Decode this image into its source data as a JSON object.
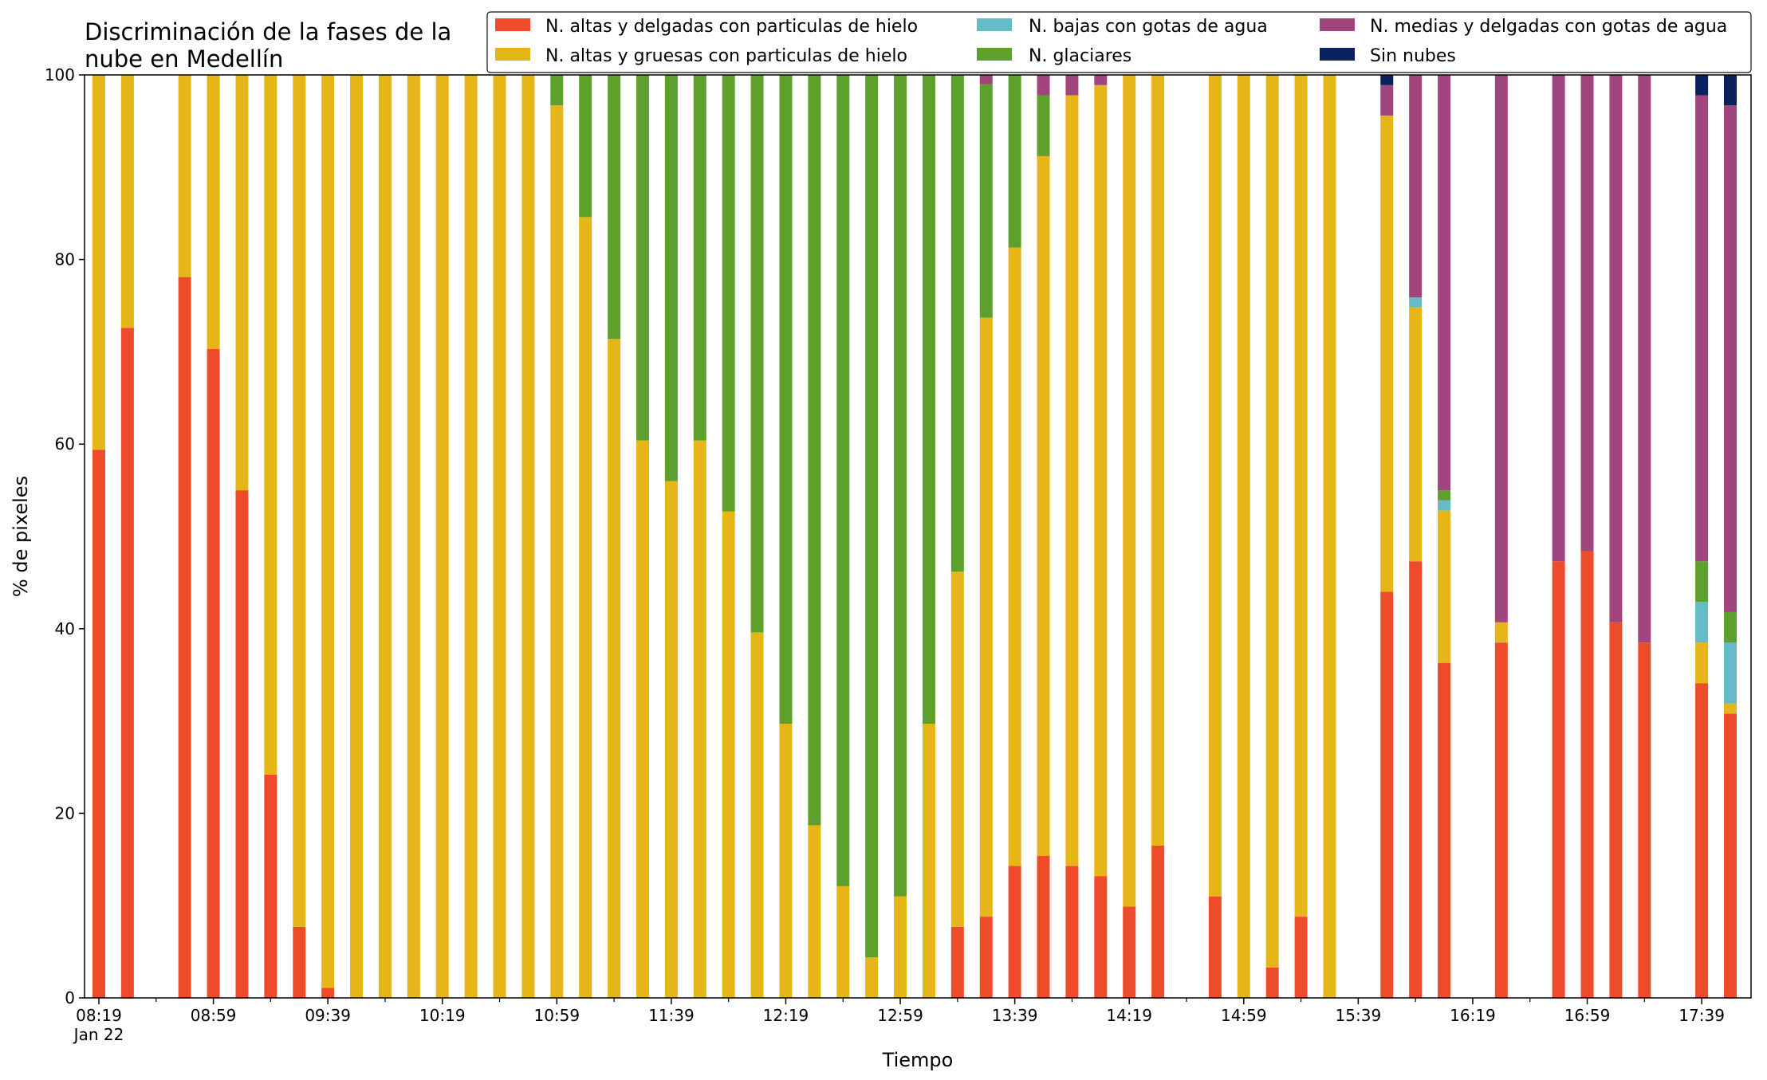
{
  "chart_data": {
    "type": "bar",
    "stacked": true,
    "title_lines": [
      "Discriminación de la fases de la",
      "nube en Medellín"
    ],
    "xlabel": "Tiempo",
    "ylabel": "% de pixeles",
    "ylim": [
      0,
      100
    ],
    "yticks": [
      0,
      20,
      40,
      60,
      80,
      100
    ],
    "x_start": "2022-01-22 08:19",
    "x_end": "2022-01-22 17:49",
    "x_ticks": [
      {
        "time": "08:19",
        "label": "08:19",
        "sublabel": "Jan 22"
      },
      {
        "time": "08:59",
        "label": "08:59"
      },
      {
        "time": "09:39",
        "label": "09:39"
      },
      {
        "time": "10:19",
        "label": "10:19"
      },
      {
        "time": "10:59",
        "label": "10:59"
      },
      {
        "time": "11:39",
        "label": "11:39"
      },
      {
        "time": "12:19",
        "label": "12:19"
      },
      {
        "time": "12:59",
        "label": "12:59"
      },
      {
        "time": "13:39",
        "label": "13:39"
      },
      {
        "time": "14:19",
        "label": "14:19"
      },
      {
        "time": "14:59",
        "label": "14:59"
      },
      {
        "time": "15:39",
        "label": "15:39"
      },
      {
        "time": "16:19",
        "label": "16:19"
      },
      {
        "time": "16:59",
        "label": "16:59"
      },
      {
        "time": "17:39",
        "label": "17:39"
      }
    ],
    "grid": false,
    "legend_position": "top-right",
    "series": [
      {
        "name": "N. altas y delgadas con particulas de hielo",
        "color": "#EE4B2B"
      },
      {
        "name": "N. altas y gruesas con particulas de hielo",
        "color": "#E6B618"
      },
      {
        "name": "N. bajas con gotas de agua",
        "color": "#63BCC8"
      },
      {
        "name": "N. glaciares",
        "color": "#5DA02C"
      },
      {
        "name": "N. medias y delgadas con gotas de agua",
        "color": "#A0457D"
      },
      {
        "name": "Sin nubes",
        "color": "#0A2260"
      }
    ],
    "bars": [
      {
        "time": "08:19",
        "values": [
          59.4,
          40.6,
          0,
          0,
          0,
          0
        ]
      },
      {
        "time": "08:29",
        "values": [
          72.6,
          27.4,
          0,
          0,
          0,
          0
        ]
      },
      {
        "time": "08:49",
        "values": [
          78.1,
          21.9,
          0,
          0,
          0,
          0
        ]
      },
      {
        "time": "08:59",
        "values": [
          70.3,
          29.7,
          0,
          0,
          0,
          0
        ]
      },
      {
        "time": "09:09",
        "values": [
          55.0,
          45.0,
          0,
          0,
          0,
          0
        ]
      },
      {
        "time": "09:19",
        "values": [
          24.2,
          75.8,
          0,
          0,
          0,
          0
        ]
      },
      {
        "time": "09:29",
        "values": [
          7.7,
          92.3,
          0,
          0,
          0,
          0
        ]
      },
      {
        "time": "09:39",
        "values": [
          1.1,
          98.9,
          0,
          0,
          0,
          0
        ]
      },
      {
        "time": "09:49",
        "values": [
          0,
          100,
          0,
          0,
          0,
          0
        ]
      },
      {
        "time": "09:59",
        "values": [
          0,
          100,
          0,
          0,
          0,
          0
        ]
      },
      {
        "time": "10:09",
        "values": [
          0,
          100,
          0,
          0,
          0,
          0
        ]
      },
      {
        "time": "10:19",
        "values": [
          0,
          100,
          0,
          0,
          0,
          0
        ]
      },
      {
        "time": "10:29",
        "values": [
          0,
          100,
          0,
          0,
          0,
          0
        ]
      },
      {
        "time": "10:39",
        "values": [
          0,
          100,
          0,
          0,
          0,
          0
        ]
      },
      {
        "time": "10:49",
        "values": [
          0,
          100,
          0,
          0,
          0,
          0
        ]
      },
      {
        "time": "10:59",
        "values": [
          0,
          96.7,
          0,
          3.3,
          0,
          0
        ]
      },
      {
        "time": "11:09",
        "values": [
          0,
          84.6,
          0,
          15.4,
          0,
          0
        ]
      },
      {
        "time": "11:19",
        "values": [
          0,
          71.4,
          0,
          28.6,
          0,
          0
        ]
      },
      {
        "time": "11:29",
        "values": [
          0,
          60.4,
          0,
          39.6,
          0,
          0
        ]
      },
      {
        "time": "11:39",
        "values": [
          0,
          56.0,
          0,
          44.0,
          0,
          0
        ]
      },
      {
        "time": "11:49",
        "values": [
          0,
          60.4,
          0,
          39.6,
          0,
          0
        ]
      },
      {
        "time": "11:59",
        "values": [
          0,
          52.7,
          0,
          47.3,
          0,
          0
        ]
      },
      {
        "time": "12:09",
        "values": [
          0,
          39.6,
          0,
          60.4,
          0,
          0
        ]
      },
      {
        "time": "12:19",
        "values": [
          0,
          29.7,
          0,
          70.3,
          0,
          0
        ]
      },
      {
        "time": "12:29",
        "values": [
          0,
          18.7,
          0,
          81.3,
          0,
          0
        ]
      },
      {
        "time": "12:39",
        "values": [
          0,
          12.1,
          0,
          87.9,
          0,
          0
        ]
      },
      {
        "time": "12:49",
        "values": [
          0,
          4.4,
          0,
          95.6,
          0,
          0
        ]
      },
      {
        "time": "12:59",
        "values": [
          0,
          11.0,
          0,
          89.0,
          0,
          0
        ]
      },
      {
        "time": "13:09",
        "values": [
          0,
          29.7,
          0,
          70.3,
          0,
          0
        ]
      },
      {
        "time": "13:19",
        "values": [
          7.7,
          38.5,
          0,
          53.8,
          0,
          0
        ]
      },
      {
        "time": "13:29",
        "values": [
          8.8,
          64.9,
          0,
          25.3,
          1.0,
          0
        ]
      },
      {
        "time": "13:39",
        "values": [
          14.3,
          67.0,
          0,
          18.7,
          0,
          0
        ]
      },
      {
        "time": "13:49",
        "values": [
          15.4,
          75.8,
          0,
          6.6,
          2.2,
          0
        ]
      },
      {
        "time": "13:59",
        "values": [
          14.3,
          83.5,
          0,
          0,
          2.2,
          0
        ]
      },
      {
        "time": "14:09",
        "values": [
          13.2,
          85.7,
          0,
          0,
          1.1,
          0
        ]
      },
      {
        "time": "14:19",
        "values": [
          9.9,
          90.1,
          0,
          0,
          0,
          0
        ]
      },
      {
        "time": "14:29",
        "values": [
          16.5,
          83.5,
          0,
          0,
          0,
          0
        ]
      },
      {
        "time": "14:49",
        "values": [
          11.0,
          89.0,
          0,
          0,
          0,
          0
        ]
      },
      {
        "time": "14:59",
        "values": [
          0,
          100,
          0,
          0,
          0,
          0
        ]
      },
      {
        "time": "15:09",
        "values": [
          3.3,
          96.7,
          0,
          0,
          0,
          0
        ]
      },
      {
        "time": "15:19",
        "values": [
          8.8,
          91.2,
          0,
          0,
          0,
          0
        ]
      },
      {
        "time": "15:29",
        "values": [
          0,
          100,
          0,
          0,
          0,
          0
        ]
      },
      {
        "time": "15:49",
        "values": [
          44.0,
          51.6,
          0,
          0,
          3.3,
          1.1
        ]
      },
      {
        "time": "15:59",
        "values": [
          47.3,
          27.5,
          1.1,
          0,
          24.1,
          0
        ]
      },
      {
        "time": "16:09",
        "values": [
          36.3,
          16.5,
          1.1,
          1.1,
          45.0,
          0
        ]
      },
      {
        "time": "16:29",
        "values": [
          38.5,
          2.2,
          0,
          0,
          59.3,
          0
        ]
      },
      {
        "time": "16:49",
        "values": [
          47.3,
          0,
          0,
          0,
          52.7,
          0
        ]
      },
      {
        "time": "16:59",
        "values": [
          48.4,
          0,
          0,
          0,
          51.6,
          0
        ]
      },
      {
        "time": "17:09",
        "values": [
          40.7,
          0,
          0,
          0,
          59.3,
          0
        ]
      },
      {
        "time": "17:19",
        "values": [
          38.5,
          0,
          0,
          0,
          61.5,
          0
        ]
      },
      {
        "time": "17:39",
        "values": [
          34.1,
          4.4,
          4.4,
          4.4,
          50.5,
          2.2
        ]
      },
      {
        "time": "17:49",
        "values": [
          30.8,
          1.1,
          6.6,
          3.3,
          54.9,
          3.3
        ]
      }
    ]
  }
}
